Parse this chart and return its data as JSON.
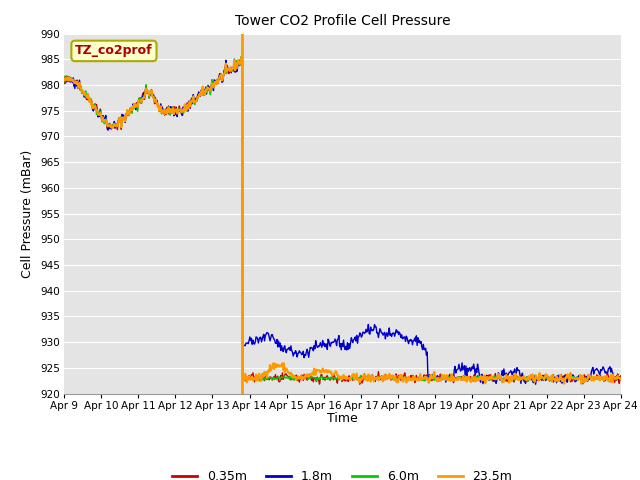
{
  "title": "Tower CO2 Profile Cell Pressure",
  "xlabel": "Time",
  "ylabel": "Cell Pressure (mBar)",
  "ylim": [
    920,
    990
  ],
  "yticks": [
    920,
    925,
    930,
    935,
    940,
    945,
    950,
    955,
    960,
    965,
    970,
    975,
    980,
    985,
    990
  ],
  "background_color": "#e8e8e8",
  "plot_bg_color": "#e4e4e4",
  "grid_color": "#ffffff",
  "legend_label": "TZ_co2prof",
  "legend_text_color": "#aa0000",
  "legend_bg": "#ffffcc",
  "legend_border": "#aaaa00",
  "series": [
    {
      "label": "0.35m",
      "color": "#cc0000",
      "lw": 1.0
    },
    {
      "label": "1.8m",
      "color": "#0000cc",
      "lw": 1.0
    },
    {
      "label": "6.0m",
      "color": "#00cc00",
      "lw": 1.0
    },
    {
      "label": "23.5m",
      "color": "#ff9900",
      "lw": 1.5
    }
  ],
  "x_tick_labels": [
    "Apr 9",
    "Apr 10",
    "Apr 11",
    "Apr 12",
    "Apr 13",
    "Apr 14",
    "Apr 15",
    "Apr 16",
    "Apr 17",
    "Apr 18",
    "Apr 19",
    "Apr 20",
    "Apr 21",
    "Apr 22",
    "Apr 23",
    "Apr 24"
  ],
  "vline_x": 4.8,
  "vline_color": "#ff9900",
  "vline_lw": 2.0
}
